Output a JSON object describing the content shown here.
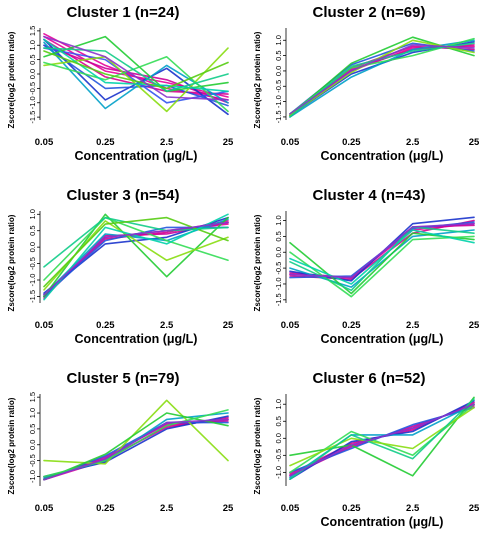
{
  "chart_data": [
    {
      "type": "line",
      "title": "Cluster 1 (n=24)",
      "xlabel": "Concentration (μg/L)",
      "ylabel": "Zscore(log2 protein ratio)",
      "x": [
        "0.05",
        "0.25",
        "2.5",
        "25"
      ],
      "y_ticks": [
        "1.5",
        "1.0",
        "0.5",
        "0.0",
        "-0.5",
        "-1.0",
        "-1.5"
      ],
      "ylim": [
        -1.6,
        1.6
      ],
      "series": [
        {
          "values": [
            1.4,
            0.3,
            -0.5,
            -0.9
          ],
          "color": "#e6009a"
        },
        {
          "values": [
            1.3,
            0.1,
            -0.3,
            -0.8
          ],
          "color": "#e6009a"
        },
        {
          "values": [
            1.2,
            -0.1,
            -0.6,
            -0.7
          ],
          "color": "#d7008f"
        },
        {
          "values": [
            1.0,
            0.2,
            -0.2,
            -1.0
          ],
          "color": "#cc0099"
        },
        {
          "values": [
            1.2,
            -0.9,
            0.2,
            -1.4
          ],
          "color": "#1a33cc"
        },
        {
          "values": [
            1.0,
            -0.5,
            -0.4,
            -1.1
          ],
          "color": "#2255dd"
        },
        {
          "values": [
            0.9,
            0.5,
            -1.0,
            -0.6
          ],
          "color": "#3355ee"
        },
        {
          "values": [
            1.1,
            -1.2,
            0.3,
            -1.0
          ],
          "color": "#00a0c8"
        },
        {
          "values": [
            0.6,
            1.3,
            -0.6,
            -0.3
          ],
          "color": "#22cc33"
        },
        {
          "values": [
            0.3,
            0.6,
            -1.3,
            0.9
          ],
          "color": "#88dd11"
        },
        {
          "values": [
            0.4,
            -0.2,
            0.6,
            -1.3
          ],
          "color": "#33dd55"
        },
        {
          "values": [
            0.9,
            0.8,
            -0.6,
            0.0
          ],
          "color": "#11cc88"
        },
        {
          "values": [
            1.2,
            -0.3,
            -0.4,
            -0.6
          ],
          "color": "#00d2aa"
        },
        {
          "values": [
            0.8,
            0.0,
            -0.5,
            0.4
          ],
          "color": "#55cc11"
        },
        {
          "values": [
            1.3,
            0.6,
            -0.8,
            -0.9
          ],
          "color": "#8833cc"
        }
      ]
    },
    {
      "type": "line",
      "title": "Cluster 2 (n=69)",
      "xlabel": "Concentration (μg/L)",
      "ylabel": "Zscore(log2 protein ratio)",
      "x": [
        "0.05",
        "0.25",
        "2.5",
        "25"
      ],
      "y_ticks": [
        "1.5",
        "1.0",
        "0.5",
        "0.0",
        "-0.5",
        "-1.0",
        "-1.5"
      ],
      "ylim": [
        -1.6,
        1.4
      ],
      "series": [
        {
          "values": [
            -1.45,
            0.0,
            0.75,
            0.8
          ],
          "color": "#e6009a"
        },
        {
          "values": [
            -1.4,
            0.05,
            0.7,
            0.85
          ],
          "color": "#d7008f"
        },
        {
          "values": [
            -1.5,
            0.1,
            0.8,
            0.7
          ],
          "color": "#cc0099"
        },
        {
          "values": [
            -1.45,
            -0.1,
            0.6,
            0.95
          ],
          "color": "#1a33cc"
        },
        {
          "values": [
            -1.4,
            0.2,
            0.9,
            0.65
          ],
          "color": "#2255dd"
        },
        {
          "values": [
            -1.5,
            -0.2,
            0.7,
            1.0
          ],
          "color": "#00a0c8"
        },
        {
          "values": [
            -1.45,
            0.25,
            1.1,
            0.5
          ],
          "color": "#22cc33"
        },
        {
          "values": [
            -1.4,
            0.1,
            0.5,
            1.05
          ],
          "color": "#33dd55"
        },
        {
          "values": [
            -1.45,
            -0.05,
            1.0,
            0.6
          ],
          "color": "#88dd11"
        },
        {
          "values": [
            -1.5,
            0.15,
            0.65,
            0.9
          ],
          "color": "#11cc88"
        },
        {
          "values": [
            -1.4,
            0.0,
            0.85,
            0.75
          ],
          "color": "#8833cc"
        }
      ]
    },
    {
      "type": "line",
      "title": "Cluster 3 (n=54)",
      "xlabel": "Concentration (μg/L)",
      "ylabel": "Zscore(log2 protein ratio)",
      "x": [
        "0.05",
        "0.25",
        "2.5",
        "25"
      ],
      "y_ticks": [
        "1.0",
        "0.5",
        "0.0",
        "-0.5",
        "-1.0",
        "-1.5"
      ],
      "ylim": [
        -1.7,
        1.1
      ],
      "series": [
        {
          "values": [
            -1.5,
            0.3,
            0.5,
            0.7
          ],
          "color": "#e6009a"
        },
        {
          "values": [
            -1.45,
            0.25,
            0.45,
            0.8
          ],
          "color": "#d7008f"
        },
        {
          "values": [
            -1.55,
            0.35,
            0.4,
            0.75
          ],
          "color": "#cc0099"
        },
        {
          "values": [
            -1.4,
            0.1,
            0.3,
            0.9
          ],
          "color": "#1a33cc"
        },
        {
          "values": [
            -1.5,
            0.2,
            0.6,
            0.6
          ],
          "color": "#2255dd"
        },
        {
          "values": [
            -1.45,
            0.4,
            0.2,
            0.85
          ],
          "color": "#00a0c8"
        },
        {
          "values": [
            -1.5,
            1.0,
            -0.9,
            0.9
          ],
          "color": "#22cc33"
        },
        {
          "values": [
            -1.0,
            0.9,
            0.2,
            -0.4
          ],
          "color": "#33dd55"
        },
        {
          "values": [
            -1.3,
            0.8,
            -0.4,
            0.3
          ],
          "color": "#88dd11"
        },
        {
          "values": [
            -0.6,
            0.9,
            0.5,
            0.6
          ],
          "color": "#11cc88"
        },
        {
          "values": [
            -1.2,
            0.7,
            0.9,
            0.2
          ],
          "color": "#55cc11"
        },
        {
          "values": [
            -1.6,
            0.6,
            0.1,
            1.0
          ],
          "color": "#00d2aa"
        },
        {
          "values": [
            -1.45,
            0.3,
            0.5,
            0.75
          ],
          "color": "#8833cc"
        }
      ]
    },
    {
      "type": "line",
      "title": "Cluster 4 (n=43)",
      "xlabel": "Concentration (μg/L)",
      "ylabel": "Zscore(log2 protein ratio)",
      "x": [
        "0.05",
        "0.25",
        "2.5",
        "25"
      ],
      "y_ticks": [
        "1.5",
        "1.0",
        "0.5",
        "0.0",
        "-0.5",
        "-1.0",
        "-1.5"
      ],
      "ylim": [
        -1.6,
        1.3
      ],
      "series": [
        {
          "values": [
            -0.7,
            -0.8,
            0.7,
            0.9
          ],
          "color": "#e6009a"
        },
        {
          "values": [
            -0.75,
            -0.85,
            0.6,
            1.0
          ],
          "color": "#d7008f"
        },
        {
          "values": [
            -0.65,
            -0.8,
            0.8,
            0.85
          ],
          "color": "#cc0099"
        },
        {
          "values": [
            -0.6,
            -0.9,
            0.9,
            1.1
          ],
          "color": "#1a33cc"
        },
        {
          "values": [
            -0.8,
            -0.75,
            0.75,
            0.95
          ],
          "color": "#2255dd"
        },
        {
          "values": [
            -0.5,
            -1.1,
            0.5,
            0.7
          ],
          "color": "#00a0c8"
        },
        {
          "values": [
            0.3,
            -1.3,
            0.6,
            0.4
          ],
          "color": "#22cc33"
        },
        {
          "values": [
            0.0,
            -1.4,
            0.4,
            0.5
          ],
          "color": "#33dd55"
        },
        {
          "values": [
            -0.3,
            -1.2,
            0.8,
            0.6
          ],
          "color": "#11cc88"
        },
        {
          "values": [
            -0.2,
            -1.0,
            0.7,
            0.3
          ],
          "color": "#00d2aa"
        },
        {
          "values": [
            -0.7,
            -0.8,
            0.8,
            0.9
          ],
          "color": "#8833cc"
        }
      ]
    },
    {
      "type": "line",
      "title": "Cluster 5 (n=79)",
      "xlabel": "",
      "ylabel": "Zscore(log2 protein ratio)",
      "x": [
        "0.05",
        "0.25",
        "2.5",
        "25"
      ],
      "y_ticks": [
        "1.5",
        "1.0",
        "0.5",
        "0.0",
        "-0.5",
        "-1.0"
      ],
      "ylim": [
        -1.3,
        1.6
      ],
      "series": [
        {
          "values": [
            -1.1,
            -0.5,
            0.6,
            0.8
          ],
          "color": "#e6009a"
        },
        {
          "values": [
            -1.05,
            -0.45,
            0.55,
            0.85
          ],
          "color": "#d7008f"
        },
        {
          "values": [
            -1.1,
            -0.4,
            0.65,
            0.75
          ],
          "color": "#cc0099"
        },
        {
          "values": [
            -1.0,
            -0.55,
            0.5,
            0.9
          ],
          "color": "#1a33cc"
        },
        {
          "values": [
            -1.1,
            -0.35,
            0.7,
            0.7
          ],
          "color": "#2255dd"
        },
        {
          "values": [
            -1.05,
            -0.5,
            0.8,
            1.0
          ],
          "color": "#00a0c8"
        },
        {
          "values": [
            -0.5,
            -0.6,
            1.4,
            -0.5
          ],
          "color": "#88dd11"
        },
        {
          "values": [
            -1.1,
            -0.3,
            1.0,
            0.6
          ],
          "color": "#22cc33"
        },
        {
          "values": [
            -1.0,
            -0.5,
            0.6,
            1.1
          ],
          "color": "#33dd55"
        },
        {
          "values": [
            -1.1,
            -0.45,
            0.7,
            0.8
          ],
          "color": "#8833cc"
        }
      ]
    },
    {
      "type": "line",
      "title": "Cluster 6 (n=52)",
      "xlabel": "Concentration (μg/L)",
      "ylabel": "Zscore(log2 protein ratio)",
      "x": [
        "0.05",
        "0.25",
        "2.5",
        "25"
      ],
      "y_ticks": [
        "1.0",
        "0.5",
        "0.0",
        "-0.5",
        "-1.0"
      ],
      "ylim": [
        -1.4,
        1.3
      ],
      "series": [
        {
          "values": [
            -1.1,
            -0.2,
            0.3,
            1.0
          ],
          "color": "#e6009a"
        },
        {
          "values": [
            -1.05,
            -0.15,
            0.25,
            1.05
          ],
          "color": "#d7008f"
        },
        {
          "values": [
            -1.1,
            -0.25,
            0.35,
            0.95
          ],
          "color": "#cc0099"
        },
        {
          "values": [
            -1.2,
            -0.1,
            0.2,
            1.1
          ],
          "color": "#1a33cc"
        },
        {
          "values": [
            -1.0,
            -0.3,
            0.4,
            0.9
          ],
          "color": "#2255dd"
        },
        {
          "values": [
            -1.15,
            0.1,
            0.1,
            1.0
          ],
          "color": "#00a0c8"
        },
        {
          "values": [
            -0.5,
            -0.2,
            -1.1,
            1.2
          ],
          "color": "#22cc33"
        },
        {
          "values": [
            -1.0,
            0.2,
            -0.5,
            1.0
          ],
          "color": "#33dd55"
        },
        {
          "values": [
            -0.8,
            0.0,
            -0.3,
            0.9
          ],
          "color": "#88dd11"
        },
        {
          "values": [
            -1.2,
            0.1,
            -0.6,
            1.15
          ],
          "color": "#11cc88"
        },
        {
          "values": [
            -1.1,
            -0.2,
            0.3,
            1.0
          ],
          "color": "#8833cc"
        }
      ]
    }
  ]
}
